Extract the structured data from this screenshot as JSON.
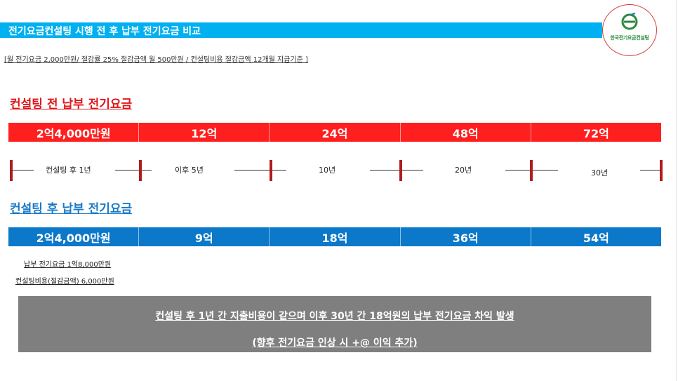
{
  "header": {
    "title": "전기요금컨설팅 시행 전 후 납부 전기요금 비교"
  },
  "logo": {
    "text": "한국전기요금컨설팅",
    "icon": "leaf-e-logo",
    "color": "#2b8a3e"
  },
  "subline": "[월 전기요금 2,000만원/ 절감률 25% 절감금액 월 500만원 / 컨설팅비용 절감금액 12개월 지급기준 ]",
  "before": {
    "title": "컨설팅 전 납부 전기요금",
    "color": "#ff1f1f",
    "cells": [
      "2억4,000만원",
      "12억",
      "24억",
      "48억",
      "72억"
    ]
  },
  "timeline": {
    "labels": [
      "컨설팅 후 1년",
      "이후 5년",
      "10년",
      "20년",
      "30년"
    ]
  },
  "after": {
    "title": "컨설팅 후 납부 전기요금",
    "color": "#0b78c9",
    "cells": [
      "2억4,000만원",
      "9억",
      "18억",
      "36억",
      "54억"
    ]
  },
  "notes": {
    "note1": "납부 전기요금 1억8,000만원",
    "note2": "컨설팅비용(절감금액) 6,000만원"
  },
  "summary": {
    "line1": "컨설팅 후 1년 간 지출비용이 같으며 이후 30년 간 18억원의 납부 전기요금 차익 발생",
    "line2": "(향후 전기요금 인상 시 +@ 이익 추가)"
  }
}
